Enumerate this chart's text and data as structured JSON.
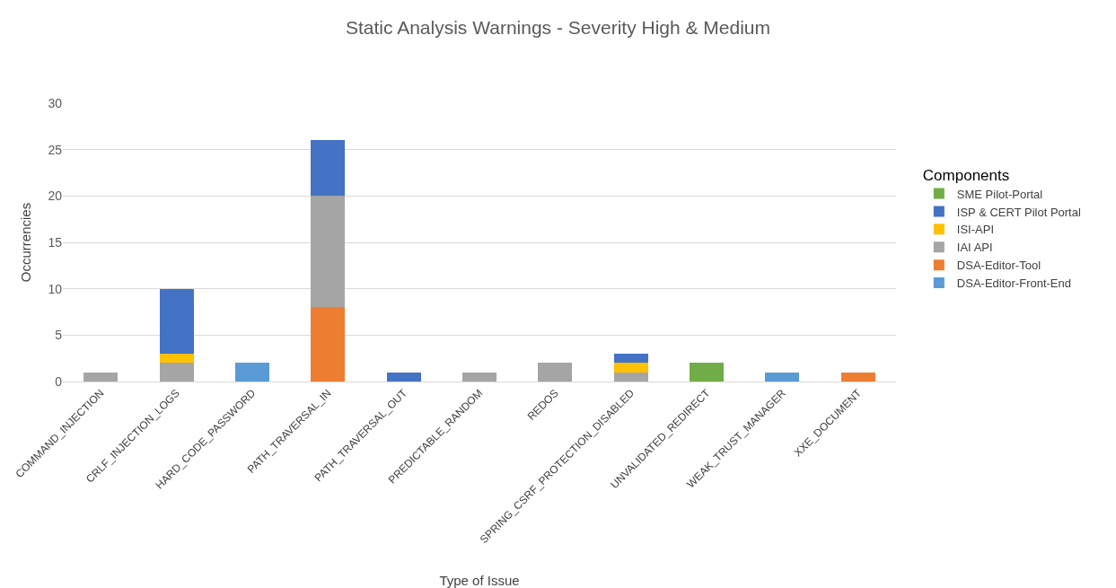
{
  "chart_data": {
    "type": "bar",
    "stacked": true,
    "title": "Static Analysis Warnings - Severity High & Medium",
    "xlabel": "Type of Issue",
    "ylabel": "Occurrencies",
    "legend_title": "Components",
    "categories": [
      "COMMAND_INJECTION",
      "CRLF_INJECTION_LOGS",
      "HARD_CODE_PASSWORD",
      "PATH_TRAVERSAL_IN",
      "PATH_TRAVERSAL_OUT",
      "PREDICTABLE_RANDOM",
      "REDOS",
      "SPRING_CSRF_PROTECTION_DISABLED",
      "UNVALIDATED_REDIRECT",
      "WEAK_TRUST_MANAGER",
      "XXE_DOCUMENT"
    ],
    "series": [
      {
        "name": "DSA-Editor-Front-End",
        "color": "#5b9bd5",
        "values": [
          null,
          null,
          2,
          null,
          null,
          null,
          null,
          null,
          null,
          1,
          null
        ]
      },
      {
        "name": "DSA-Editor-Tool",
        "color": "#ed7d31",
        "values": [
          null,
          null,
          null,
          8,
          null,
          null,
          null,
          null,
          null,
          null,
          1
        ]
      },
      {
        "name": "IAI API",
        "color": "#a5a5a5",
        "values": [
          1,
          2,
          null,
          12,
          null,
          1,
          2,
          1,
          null,
          null,
          null
        ]
      },
      {
        "name": "ISI-API",
        "color": "#ffc000",
        "values": [
          null,
          1,
          null,
          null,
          null,
          null,
          null,
          1,
          null,
          null,
          null
        ]
      },
      {
        "name": "ISP & CERT Pilot Portal",
        "color": "#4472c4",
        "values": [
          null,
          7,
          null,
          6,
          1,
          null,
          null,
          1,
          null,
          null,
          null
        ]
      },
      {
        "name": "SME Pilot-Portal",
        "color": "#70ad47",
        "values": [
          null,
          null,
          null,
          null,
          null,
          null,
          null,
          null,
          2,
          null,
          null
        ]
      }
    ],
    "ylim": [
      0,
      30
    ],
    "yticks": [
      0,
      5,
      10,
      15,
      20,
      25,
      30
    ],
    "grid": "y",
    "legend": "right"
  }
}
